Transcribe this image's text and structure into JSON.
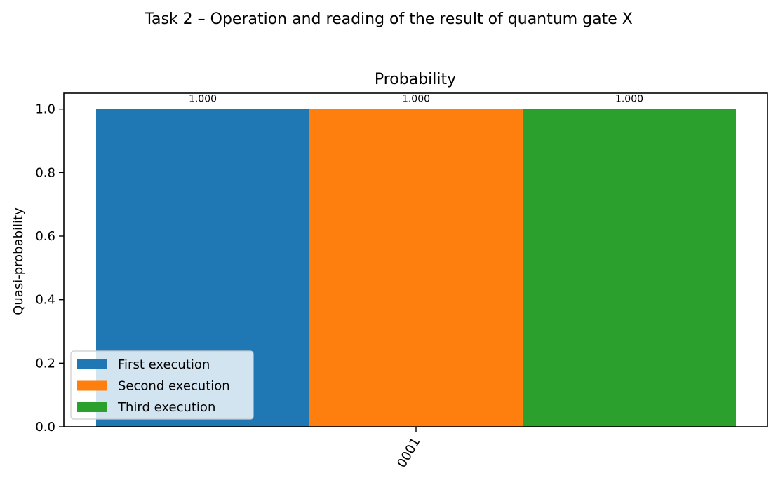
{
  "figure": {
    "suptitle": "Task 2 – Operation and reading of the result of quantum gate X"
  },
  "chart_data": {
    "type": "bar",
    "title": "Probability",
    "xlabel": "",
    "ylabel": "Quasi-probability",
    "categories": [
      "0001"
    ],
    "series": [
      {
        "name": "First execution",
        "values": [
          1.0
        ],
        "label": "1.000",
        "color": "#1f77b4"
      },
      {
        "name": "Second execution",
        "values": [
          1.0
        ],
        "label": "1.000",
        "color": "#ff7f0e"
      },
      {
        "name": "Third execution",
        "values": [
          1.0
        ],
        "label": "1.000",
        "color": "#2ca02c"
      }
    ],
    "ylim": [
      0,
      1.05
    ],
    "yticks": [
      "0.0",
      "0.2",
      "0.4",
      "0.6",
      "0.8",
      "1.0"
    ],
    "grid": false,
    "legend_position": "lower-left"
  }
}
